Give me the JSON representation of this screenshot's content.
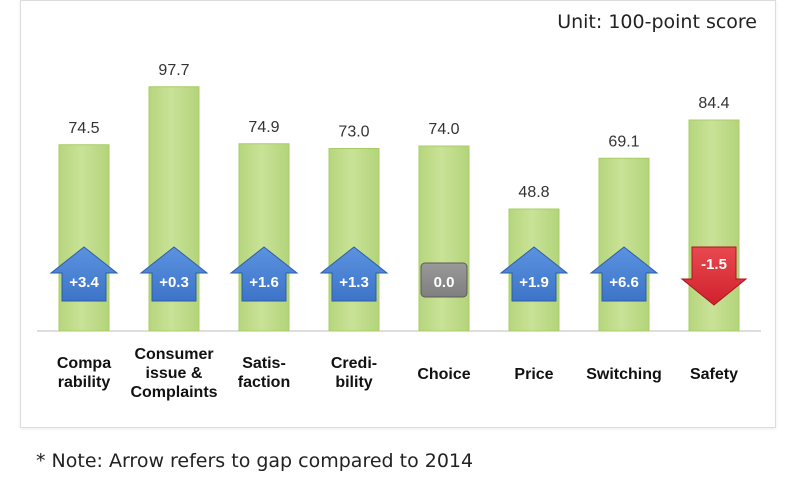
{
  "unit_label": "Unit: 100-point score",
  "note": "* Note: Arrow refers to gap compared to 2014",
  "chart_data": {
    "type": "bar",
    "categories": [
      [
        "Compa",
        "rability"
      ],
      [
        "Consumer",
        "issue &",
        "Complaints"
      ],
      [
        "Satis-",
        "faction"
      ],
      [
        "Credi-",
        "bility"
      ],
      [
        "Choice"
      ],
      [
        "Price"
      ],
      [
        "Switching"
      ],
      [
        "Safety"
      ]
    ],
    "values": [
      74.5,
      97.7,
      74.9,
      73.0,
      74.0,
      48.8,
      69.1,
      84.4
    ],
    "value_labels": [
      "74.5",
      "97.7",
      "74.9",
      "73.0",
      "74.0",
      "48.8",
      "69.1",
      "84.4"
    ],
    "gaps": [
      3.4,
      0.3,
      1.6,
      1.3,
      0.0,
      1.9,
      6.6,
      -1.5
    ],
    "gap_labels": [
      "+3.4",
      "+0.3",
      "+1.6",
      "+1.3",
      "0.0",
      "+1.9",
      "+6.6",
      "-1.5"
    ],
    "ylim": [
      0,
      100
    ],
    "grid": false,
    "colors": {
      "bar_fill": "#c9e297",
      "bar_edge": "#a9cc66",
      "arrow_up": "#3d74c8",
      "arrow_down": "#d0212d",
      "flat": "#7f7f7f"
    }
  }
}
